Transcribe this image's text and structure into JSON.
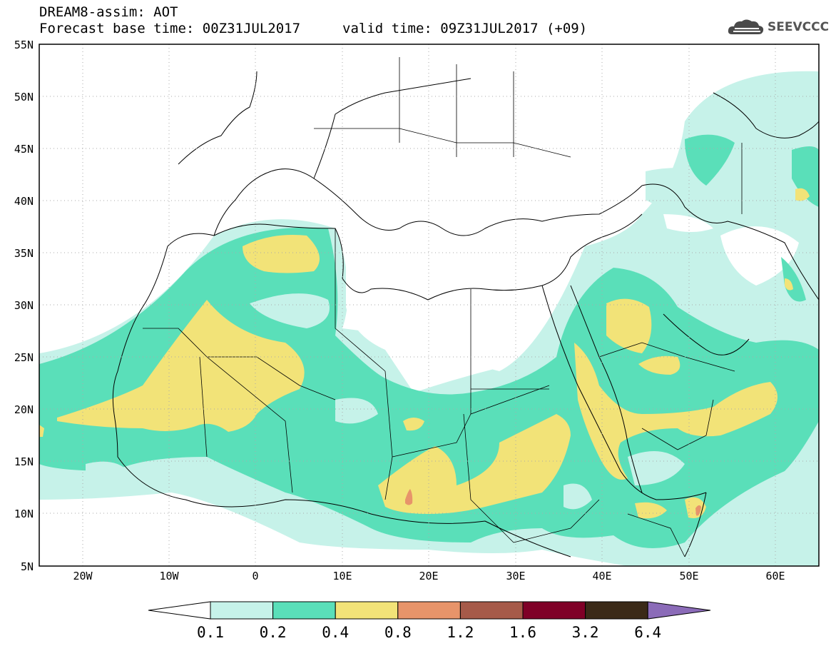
{
  "title": {
    "line1": "DREAM8-assim: AOT",
    "line2": "Forecast base time: 00Z31JUL2017",
    "valid": "valid time: 09Z31JUL2017 (+09)"
  },
  "logo": {
    "text": "SEEVCCC",
    "icon": "cloud-logo-icon"
  },
  "map": {
    "lat_labels": [
      "55N",
      "50N",
      "45N",
      "40N",
      "35N",
      "30N",
      "25N",
      "20N",
      "15N",
      "10N",
      "5N"
    ],
    "lon_labels": [
      "20W",
      "10W",
      "0",
      "10E",
      "20E",
      "30E",
      "40E",
      "50E",
      "60E"
    ],
    "lon_range": [
      -25,
      65
    ],
    "lat_range": [
      5,
      55
    ],
    "grid": "dotted"
  },
  "colorbar": {
    "ticks": [
      "0.1",
      "0.2",
      "0.4",
      "0.8",
      "1.2",
      "1.6",
      "3.2",
      "6.4"
    ],
    "colors": [
      "#ffffff",
      "#c6f2e9",
      "#5adfb9",
      "#f2e378",
      "#e7946a",
      "#a65a49",
      "#7f0027",
      "#3b2a18",
      "#8b6bb8"
    ]
  }
}
